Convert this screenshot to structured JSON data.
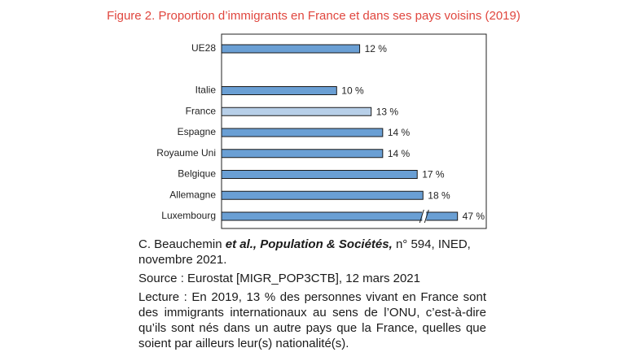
{
  "chart_data": {
    "type": "bar",
    "orientation": "horizontal",
    "title": "Figure 2. Proportion d’immigrants en France et dans ses pays voisins (2019)",
    "categories": [
      "UE28",
      null,
      "Italie",
      "France",
      "Espagne",
      "Royaume Uni",
      "Belgique",
      "Allemagne",
      "Luxembourg"
    ],
    "values": [
      12,
      null,
      10,
      13,
      14,
      14,
      17,
      18,
      47
    ],
    "value_labels": [
      "12 %",
      null,
      "10 %",
      "13 %",
      "14 %",
      "14 %",
      "17 %",
      "18 %",
      "47 %"
    ],
    "colors": [
      "#6a9fd4",
      null,
      "#6a9fd4",
      "#b7cfe8",
      "#6a9fd4",
      "#6a9fd4",
      "#6a9fd4",
      "#6a9fd4",
      "#6a9fd4"
    ],
    "xlim": [
      0,
      23
    ],
    "xbreak": [
      17.5,
      44
    ]
  },
  "notes": {
    "citation": {
      "author": "C. Beauchemin",
      "italic": "et al., Population & Sociétés,",
      "rest": "n° 594, INED, novembre 2021."
    },
    "source": "Source : Eurostat [MIGR_POP3CTB], 12 mars 2021",
    "reading": "Lecture : En 2019, 13 % des personnes vivant en France sont des immigrants internationaux au sens de l’ONU, c’est-à-dire qu’ils sont nés dans un autre pays que la France, quelles que soient par ailleurs leur(s) nationalité(s)."
  }
}
